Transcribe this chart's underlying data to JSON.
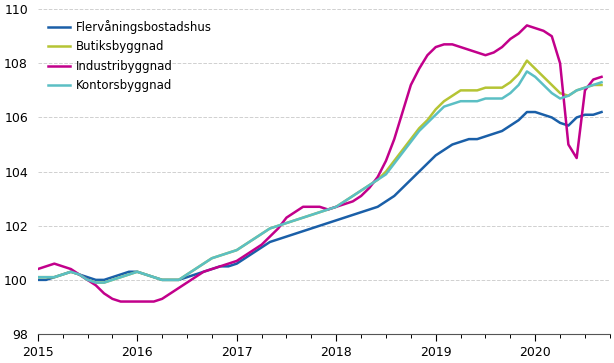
{
  "series": {
    "Flervåningsbostadshus": {
      "color": "#1a5fa8",
      "values": [
        100.0,
        100.0,
        100.1,
        100.2,
        100.3,
        100.2,
        100.1,
        100.0,
        100.0,
        100.1,
        100.2,
        100.3,
        100.3,
        100.2,
        100.1,
        100.0,
        100.0,
        100.0,
        100.1,
        100.2,
        100.3,
        100.4,
        100.5,
        100.5,
        100.6,
        100.8,
        101.0,
        101.2,
        101.4,
        101.5,
        101.6,
        101.7,
        101.8,
        101.9,
        102.0,
        102.1,
        102.2,
        102.3,
        102.4,
        102.5,
        102.6,
        102.7,
        102.9,
        103.1,
        103.4,
        103.7,
        104.0,
        104.3,
        104.6,
        104.8,
        105.0,
        105.1,
        105.2,
        105.2,
        105.3,
        105.4,
        105.5,
        105.7,
        105.9,
        106.2,
        106.2,
        106.1,
        106.0,
        105.8,
        105.7,
        106.0,
        106.1,
        106.1,
        106.2
      ]
    },
    "Butiksbyggnad": {
      "color": "#b5c434",
      "values": [
        100.1,
        100.1,
        100.1,
        100.2,
        100.3,
        100.2,
        100.0,
        99.9,
        99.9,
        100.0,
        100.1,
        100.2,
        100.3,
        100.2,
        100.1,
        100.0,
        100.0,
        100.0,
        100.2,
        100.4,
        100.6,
        100.8,
        100.9,
        101.0,
        101.1,
        101.3,
        101.5,
        101.7,
        101.9,
        102.0,
        102.1,
        102.2,
        102.3,
        102.4,
        102.5,
        102.6,
        102.7,
        102.9,
        103.1,
        103.3,
        103.5,
        103.7,
        104.0,
        104.4,
        104.8,
        105.2,
        105.6,
        105.9,
        106.3,
        106.6,
        106.8,
        107.0,
        107.0,
        107.0,
        107.1,
        107.1,
        107.1,
        107.3,
        107.6,
        108.1,
        107.8,
        107.5,
        107.2,
        106.9,
        106.8,
        107.0,
        107.1,
        107.2,
        107.2
      ]
    },
    "Industribyggnad": {
      "color": "#c2008b",
      "values": [
        100.4,
        100.5,
        100.6,
        100.5,
        100.4,
        100.2,
        100.0,
        99.8,
        99.5,
        99.3,
        99.2,
        99.2,
        99.2,
        99.2,
        99.2,
        99.3,
        99.5,
        99.7,
        99.9,
        100.1,
        100.3,
        100.4,
        100.5,
        100.6,
        100.7,
        100.9,
        101.1,
        101.3,
        101.6,
        101.9,
        102.3,
        102.5,
        102.7,
        102.7,
        102.7,
        102.6,
        102.7,
        102.8,
        102.9,
        103.1,
        103.4,
        103.8,
        104.4,
        105.2,
        106.2,
        107.2,
        107.8,
        108.3,
        108.6,
        108.7,
        108.7,
        108.6,
        108.5,
        108.4,
        108.3,
        108.4,
        108.6,
        108.9,
        109.1,
        109.4,
        109.3,
        109.2,
        109.0,
        108.0,
        105.0,
        104.5,
        107.0,
        107.4,
        107.5
      ]
    },
    "Kontorsbyggnad": {
      "color": "#5bbfc4",
      "values": [
        100.1,
        100.1,
        100.1,
        100.2,
        100.3,
        100.2,
        100.0,
        99.9,
        99.9,
        100.0,
        100.1,
        100.2,
        100.3,
        100.2,
        100.1,
        100.0,
        100.0,
        100.0,
        100.2,
        100.4,
        100.6,
        100.8,
        100.9,
        101.0,
        101.1,
        101.3,
        101.5,
        101.7,
        101.9,
        102.0,
        102.1,
        102.2,
        102.3,
        102.4,
        102.5,
        102.6,
        102.7,
        102.9,
        103.1,
        103.3,
        103.5,
        103.7,
        103.9,
        104.3,
        104.7,
        105.1,
        105.5,
        105.8,
        106.1,
        106.4,
        106.5,
        106.6,
        106.6,
        106.6,
        106.7,
        106.7,
        106.7,
        106.9,
        107.2,
        107.7,
        107.5,
        107.2,
        106.9,
        106.7,
        106.8,
        107.0,
        107.1,
        107.2,
        107.3
      ]
    }
  },
  "x_start": 2015.0,
  "n_months": 69,
  "xlim": [
    2015.0,
    2020.75
  ],
  "ylim": [
    98,
    110
  ],
  "yticks": [
    98,
    100,
    102,
    104,
    106,
    108,
    110
  ],
  "xticks_labels": [
    "2015",
    "2016",
    "2017",
    "2018",
    "2019",
    "2020"
  ],
  "xticks_values": [
    2015.0,
    2016.0,
    2017.0,
    2018.0,
    2019.0,
    2020.0
  ],
  "minor_tick_interval": 0.25,
  "grid_color": "#d0d0d0",
  "legend_order": [
    "Flervåningsbostadshus",
    "Butiksbyggnad",
    "Industribyggnad",
    "Kontorsbyggnad"
  ]
}
